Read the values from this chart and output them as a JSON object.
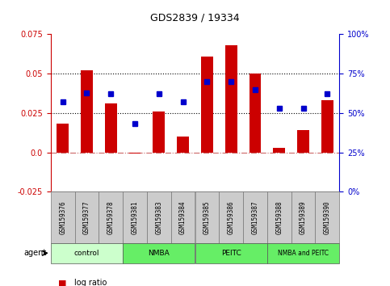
{
  "title": "GDS2839 / 19334",
  "samples": [
    "GSM159376",
    "GSM159377",
    "GSM159378",
    "GSM159381",
    "GSM159383",
    "GSM159384",
    "GSM159385",
    "GSM159386",
    "GSM159387",
    "GSM159388",
    "GSM159389",
    "GSM159390"
  ],
  "log_ratio": [
    0.018,
    0.052,
    0.031,
    -0.001,
    0.026,
    0.01,
    0.061,
    0.068,
    0.05,
    0.003,
    0.014,
    0.033
  ],
  "percentile_rank_pct": [
    57,
    63,
    62,
    43,
    62,
    57,
    70,
    70,
    65,
    53,
    53,
    62
  ],
  "ylim_left": [
    -0.025,
    0.075
  ],
  "yticks_left": [
    -0.025,
    0.0,
    0.025,
    0.05,
    0.075
  ],
  "yticks_right": [
    0,
    25,
    50,
    75,
    100
  ],
  "hline_zero": 0.0,
  "hline_dots": [
    0.025,
    0.05
  ],
  "groups": [
    {
      "label": "control",
      "start": 0,
      "end": 3,
      "color": "#ccffcc"
    },
    {
      "label": "NMBA",
      "start": 3,
      "end": 6,
      "color": "#66ee66"
    },
    {
      "label": "PEITC",
      "start": 6,
      "end": 9,
      "color": "#66ee66"
    },
    {
      "label": "NMBA and PEITC",
      "start": 9,
      "end": 12,
      "color": "#66ee66"
    }
  ],
  "bar_color": "#cc0000",
  "marker_color": "#0000cc",
  "left_axis_color": "#cc0000",
  "right_axis_color": "#0000cc",
  "zero_line_color": "#cc6666",
  "sample_box_color": "#cccccc",
  "bar_width": 0.5
}
